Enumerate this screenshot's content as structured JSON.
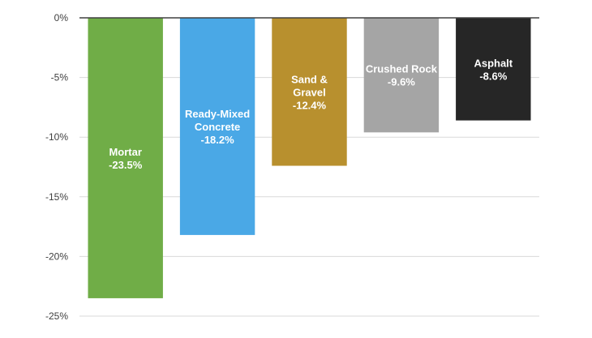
{
  "chart_data": {
    "type": "bar",
    "categories": [
      "Mortar",
      "Ready-Mixed Concrete",
      "Sand & Gravel",
      "Crushed Rock",
      "Asphalt"
    ],
    "values": [
      -23.5,
      -18.2,
      -12.4,
      -9.6,
      -8.6
    ],
    "bar_labels": [
      [
        "Mortar",
        "-23.5%"
      ],
      [
        "Ready-Mixed",
        "Concrete",
        "-18.2%"
      ],
      [
        "Sand &",
        "Gravel",
        "-12.4%"
      ],
      [
        "Crushed Rock",
        "-9.6%"
      ],
      [
        "Asphalt",
        "-8.6%"
      ]
    ],
    "colors": [
      "#70ad47",
      "#4aa8e6",
      "#b8902e",
      "#a5a5a5",
      "#262626"
    ],
    "y_ticks": [
      0,
      -5,
      -10,
      -15,
      -20,
      -25
    ],
    "y_tick_labels": [
      "0%",
      "-5%",
      "-10%",
      "-15%",
      "-20%",
      "-25%"
    ],
    "ylim": [
      -25,
      0
    ],
    "grid": true,
    "legend": "none"
  }
}
